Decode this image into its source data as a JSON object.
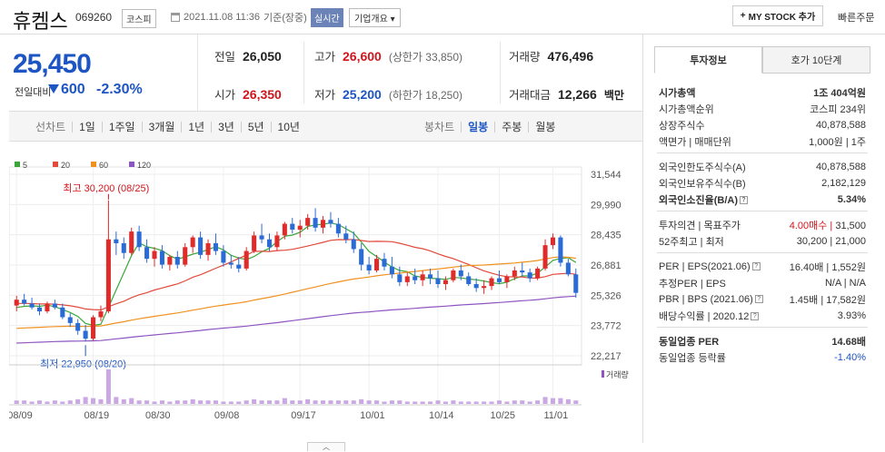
{
  "header": {
    "stock_name": "휴켐스",
    "stock_code": "069260",
    "market": "코스피",
    "datetime": "2021.11.08 11:36",
    "basis": "기준(장중)",
    "realtime_label": "실시간",
    "overview_label": "기업개요",
    "mystock_label": "MY STOCK 추가",
    "quick_order_label": "빠른주문"
  },
  "price": {
    "current": "25,450",
    "change_label": "전일대비",
    "change": "600",
    "change_pct": "-2.30%"
  },
  "quote": {
    "prev_close_label": "전일",
    "prev_close": "26,050",
    "high_label": "고가",
    "high": "26,600",
    "upper_limit": "(상한가 33,850)",
    "volume_label": "거래량",
    "volume": "476,496",
    "open_label": "시가",
    "open": "26,350",
    "low_label": "저가",
    "low": "25,200",
    "lower_limit": "(하한가 18,250)",
    "amount_label": "거래대금",
    "amount": "12,266",
    "amount_unit": "백만"
  },
  "period_tabs": {
    "label": "선차트",
    "items": [
      "1일",
      "1주일",
      "3개월",
      "1년",
      "3년",
      "5년",
      "10년"
    ],
    "candle_label": "봉차트",
    "candle_items": [
      "일봉",
      "주봉",
      "월봉"
    ],
    "candle_selected": "일봉"
  },
  "chart_data": {
    "type": "candlestick",
    "legend": [
      "5",
      "20",
      "60",
      "120"
    ],
    "legend_colors": [
      "#3aa63a",
      "#e24a3b",
      "#f0911f",
      "#8e55c0"
    ],
    "y_ticks": [
      "31,544",
      "29,990",
      "28,435",
      "26,881",
      "25,326",
      "23,772",
      "22,217"
    ],
    "ylim": [
      22217,
      31544
    ],
    "x_ticks": [
      "08/09",
      "08/19",
      "08/30",
      "09/08",
      "09/17",
      "10/01",
      "10/14",
      "10/25",
      "11/01"
    ],
    "max_annotation": "최고 30,200 (08/25)",
    "min_annotation": "최저 22,950 (08/20)",
    "volume_label": "거래량",
    "candles": [
      [
        24800,
        25300,
        24500,
        25100
      ],
      [
        25100,
        25400,
        24800,
        24900
      ],
      [
        24900,
        25200,
        24600,
        24700
      ],
      [
        24700,
        24900,
        24300,
        24500
      ],
      [
        24500,
        25000,
        24400,
        24900
      ],
      [
        24900,
        25100,
        24600,
        24700
      ],
      [
        24700,
        24900,
        24100,
        24200
      ],
      [
        24200,
        24400,
        23700,
        23900
      ],
      [
        23900,
        24100,
        23300,
        23500
      ],
      [
        23500,
        23800,
        22950,
        23100
      ],
      [
        23100,
        24300,
        23000,
        24200
      ],
      [
        24200,
        24800,
        24000,
        24500
      ],
      [
        24500,
        30200,
        24400,
        28200
      ],
      [
        28200,
        28600,
        27400,
        28000
      ],
      [
        28000,
        28300,
        27200,
        27500
      ],
      [
        27500,
        28800,
        27400,
        28600
      ],
      [
        28600,
        28900,
        27600,
        27800
      ],
      [
        27800,
        28200,
        27000,
        27200
      ],
      [
        27200,
        27800,
        26800,
        27600
      ],
      [
        27600,
        27900,
        26700,
        26900
      ],
      [
        26900,
        27400,
        26600,
        27300
      ],
      [
        27300,
        27600,
        26700,
        26900
      ],
      [
        26900,
        28000,
        26800,
        27800
      ],
      [
        27800,
        28400,
        27500,
        28300
      ],
      [
        28300,
        28600,
        27200,
        27400
      ],
      [
        27400,
        28200,
        27100,
        28000
      ],
      [
        28000,
        28500,
        27400,
        27600
      ],
      [
        27600,
        27900,
        26800,
        27000
      ],
      [
        27000,
        27400,
        26700,
        26900
      ],
      [
        26900,
        27300,
        26500,
        26700
      ],
      [
        26700,
        27800,
        26600,
        27600
      ],
      [
        27600,
        28600,
        27500,
        28400
      ],
      [
        28400,
        29000,
        28000,
        28200
      ],
      [
        28200,
        28500,
        27600,
        27800
      ],
      [
        27800,
        28600,
        27600,
        28400
      ],
      [
        28400,
        29100,
        28200,
        29000
      ],
      [
        29000,
        29300,
        28500,
        28700
      ],
      [
        28700,
        29200,
        28300,
        28900
      ],
      [
        28900,
        29500,
        28700,
        29300
      ],
      [
        29300,
        29800,
        28600,
        28800
      ],
      [
        28800,
        29400,
        28500,
        29200
      ],
      [
        29200,
        29600,
        28800,
        29000
      ],
      [
        29000,
        29300,
        28300,
        28500
      ],
      [
        28500,
        28900,
        28000,
        28200
      ],
      [
        28200,
        28600,
        27500,
        27700
      ],
      [
        27700,
        28000,
        26600,
        26900
      ],
      [
        26900,
        27300,
        26400,
        26600
      ],
      [
        26600,
        27400,
        26500,
        27200
      ],
      [
        27200,
        27500,
        26600,
        26800
      ],
      [
        26800,
        27300,
        26200,
        26400
      ],
      [
        26400,
        26800,
        25800,
        26000
      ],
      [
        26000,
        26500,
        25800,
        26300
      ],
      [
        26300,
        26700,
        25900,
        26100
      ],
      [
        26100,
        26600,
        25800,
        26400
      ],
      [
        26400,
        26700,
        25900,
        26200
      ],
      [
        26200,
        26600,
        25700,
        25900
      ],
      [
        25900,
        26300,
        25600,
        26100
      ],
      [
        26100,
        26700,
        26000,
        26600
      ],
      [
        26600,
        26900,
        26100,
        26300
      ],
      [
        26300,
        26500,
        25800,
        25900
      ],
      [
        25900,
        26200,
        25500,
        25700
      ],
      [
        25700,
        26100,
        25400,
        25800
      ],
      [
        25800,
        26300,
        25600,
        26200
      ],
      [
        26200,
        26600,
        25900,
        26000
      ],
      [
        26000,
        26400,
        25700,
        26300
      ],
      [
        26300,
        26800,
        26100,
        26600
      ],
      [
        26600,
        27000,
        26300,
        26500
      ],
      [
        26500,
        26700,
        26000,
        26200
      ],
      [
        26200,
        26800,
        26100,
        26700
      ],
      [
        26700,
        28200,
        26600,
        27900
      ],
      [
        27900,
        28500,
        27700,
        28300
      ],
      [
        28300,
        28400,
        26800,
        27000
      ],
      [
        27000,
        27200,
        26300,
        26400
      ],
      [
        26400,
        26700,
        25200,
        25450
      ]
    ],
    "volumes": [
      3,
      3,
      2,
      3,
      2,
      3,
      2,
      3,
      4,
      6,
      5,
      4,
      30,
      6,
      4,
      5,
      3,
      3,
      2,
      3,
      2,
      3,
      3,
      4,
      3,
      3,
      3,
      2,
      2,
      2,
      3,
      4,
      3,
      3,
      3,
      5,
      3,
      3,
      4,
      3,
      3,
      3,
      3,
      3,
      3,
      4,
      3,
      3,
      2,
      3,
      3,
      2,
      2,
      2,
      2,
      3,
      2,
      3,
      2,
      2,
      2,
      2,
      2,
      3,
      2,
      3,
      3,
      2,
      3,
      6,
      5,
      5,
      4,
      3
    ]
  },
  "right_panel": {
    "tab_invest": "투자정보",
    "tab_orderbook": "호가 10단계",
    "rows1": [
      {
        "k": "시가총액",
        "v": "1조 404억원"
      },
      {
        "k": "시가총액순위",
        "v": "코스피 234위"
      },
      {
        "k": "상장주식수",
        "v": "40,878,588"
      },
      {
        "k": "액면가 | 매매단위",
        "v": "1,000원 | 1주"
      }
    ],
    "rows2": [
      {
        "k": "외국인한도주식수(A)",
        "v": "40,878,588"
      },
      {
        "k": "외국인보유주식수(B)",
        "v": "2,182,129"
      },
      {
        "k": "외국인소진율(B/A)",
        "v": "5.34%"
      }
    ],
    "opinion": {
      "k": "투자의견 | 목표주가",
      "v_red": "4.00매수",
      "v": "31,500"
    },
    "range52": {
      "k": "52주최고 | 최저",
      "v": "30,200 | 21,000"
    },
    "rows4": [
      {
        "k": "PER | EPS(2021.06)",
        "v": "16.40배 | 1,552원"
      },
      {
        "k": "추정PER | EPS",
        "v": "N/A | N/A"
      },
      {
        "k": "PBR | BPS (2021.06)",
        "v": "1.45배 | 17,582원"
      },
      {
        "k": "배당수익률 | 2020.12",
        "v": "3.93%"
      }
    ],
    "industry_per": {
      "k": "동일업종 PER",
      "v": "14.68배"
    },
    "industry_change": {
      "k": "동일업종 등락률",
      "v": "-1.40%"
    }
  }
}
